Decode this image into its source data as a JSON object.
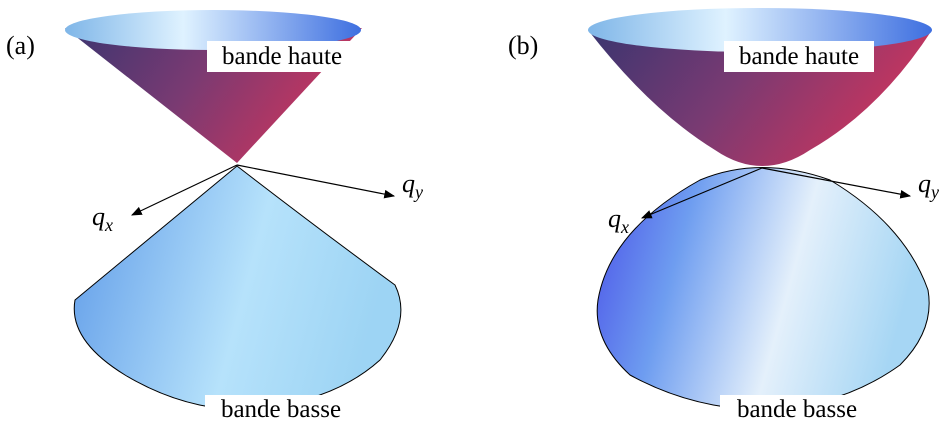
{
  "panels": [
    {
      "label": "(a)",
      "upper_band": "bande haute",
      "lower_band": "bande basse",
      "axes": [
        {
          "symbol": "q",
          "subscript": "x"
        },
        {
          "symbol": "q",
          "subscript": "y"
        }
      ]
    },
    {
      "label": "(b)",
      "upper_band": "bande haute",
      "lower_band": "bande basse",
      "axes": [
        {
          "symbol": "q",
          "subscript": "x"
        },
        {
          "symbol": "q",
          "subscript": "y"
        }
      ]
    }
  ]
}
